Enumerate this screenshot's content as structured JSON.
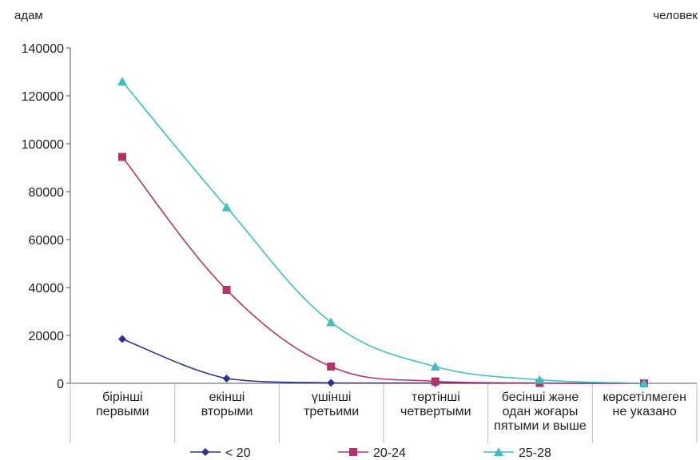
{
  "chart_data": {
    "type": "line",
    "units": {
      "left": "адам",
      "right": "человек"
    },
    "ylim": [
      0,
      140000
    ],
    "yticks": [
      "0",
      "20000",
      "40000",
      "60000",
      "80000",
      "100000",
      "120000",
      "140000"
    ],
    "categories": [
      [
        "бірінші",
        "первыми"
      ],
      [
        "екінші",
        "вторыми"
      ],
      [
        "үшінші",
        "третьими"
      ],
      [
        "төртінші",
        "четвертыми"
      ],
      [
        "бесінші және",
        "одан жоғары",
        "пятыми и выше"
      ],
      [
        "көрсетілмеген",
        "не указано"
      ]
    ],
    "series": [
      {
        "name": "< 20",
        "color": "#2e3192",
        "marker": "diamond",
        "values": [
          18500,
          2000,
          200,
          100,
          50,
          0
        ]
      },
      {
        "name": "20-24",
        "color": "#b5336b",
        "marker": "square",
        "values": [
          94500,
          39000,
          7000,
          800,
          150,
          0
        ]
      },
      {
        "name": "25-28",
        "color": "#3ebfbf",
        "marker": "triangle",
        "values": [
          126000,
          73500,
          25500,
          7000,
          1500,
          0
        ]
      }
    ],
    "grid": false,
    "legend": "bottom"
  }
}
